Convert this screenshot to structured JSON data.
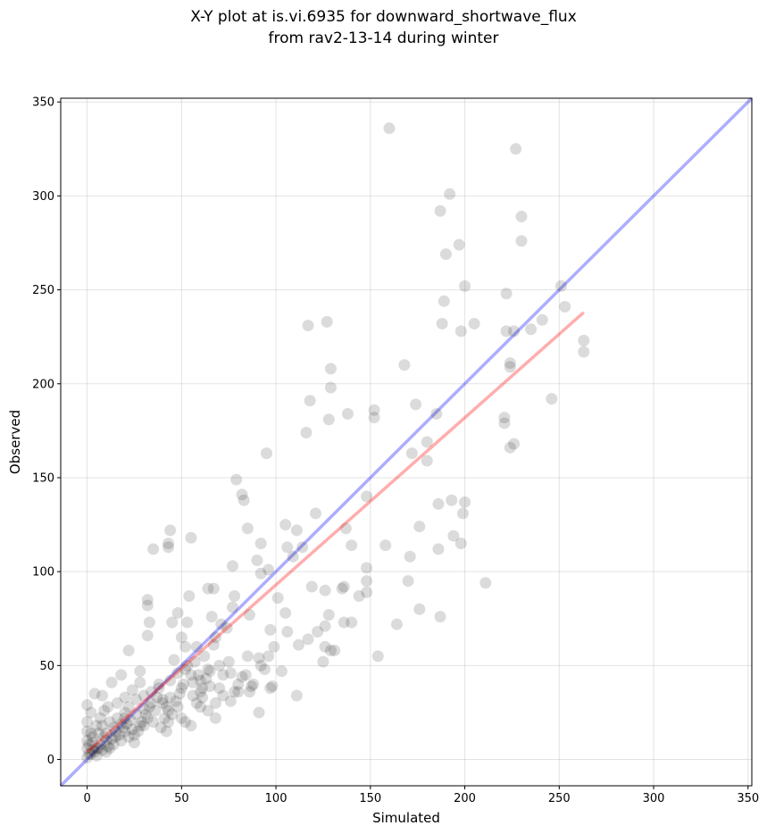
{
  "chart_data": {
    "type": "scatter",
    "title": "X-Y plot at is.vi.6935 for downward_shortwave_flux",
    "subtitle": "from rav2-13-14 during winter",
    "xlabel": "Simulated",
    "ylabel": "Observed",
    "xlim": [
      -14,
      352
    ],
    "ylim": [
      -14,
      352
    ],
    "xticks": [
      0,
      50,
      100,
      150,
      200,
      250,
      300,
      350
    ],
    "yticks": [
      0,
      50,
      100,
      150,
      200,
      250,
      300,
      350
    ],
    "grid": true,
    "colors": {
      "points": "#000000",
      "one_to_one": "#0000ff",
      "fit": "#ff0000"
    },
    "one_to_one_line": {
      "x": [
        -14,
        352
      ],
      "y": [
        -14,
        352
      ]
    },
    "fit_line": {
      "x": [
        0,
        263
      ],
      "y": [
        4,
        238
      ]
    },
    "points": [
      [
        160,
        336
      ],
      [
        227,
        325
      ],
      [
        192,
        301
      ],
      [
        187,
        292
      ],
      [
        230,
        289
      ],
      [
        230,
        276
      ],
      [
        197,
        274
      ],
      [
        190,
        269
      ],
      [
        200,
        252
      ],
      [
        251,
        252
      ],
      [
        222,
        248
      ],
      [
        189,
        244
      ],
      [
        253,
        241
      ],
      [
        205,
        232
      ],
      [
        188,
        232
      ],
      [
        127,
        233
      ],
      [
        117,
        231
      ],
      [
        222,
        228
      ],
      [
        198,
        228
      ],
      [
        226,
        228
      ],
      [
        235,
        229
      ],
      [
        241,
        234
      ],
      [
        263,
        223
      ],
      [
        263,
        217
      ],
      [
        224,
        211
      ],
      [
        224,
        209
      ],
      [
        168,
        210
      ],
      [
        129,
        208
      ],
      [
        129,
        198
      ],
      [
        118,
        191
      ],
      [
        152,
        186
      ],
      [
        138,
        184
      ],
      [
        174,
        189
      ],
      [
        185,
        184
      ],
      [
        152,
        182
      ],
      [
        128,
        181
      ],
      [
        221,
        182
      ],
      [
        221,
        179
      ],
      [
        224,
        166
      ],
      [
        226,
        168
      ],
      [
        246,
        192
      ],
      [
        116,
        174
      ],
      [
        180,
        169
      ],
      [
        172,
        163
      ],
      [
        180,
        159
      ],
      [
        95,
        163
      ],
      [
        79,
        149
      ],
      [
        82,
        141
      ],
      [
        83,
        138
      ],
      [
        148,
        140
      ],
      [
        193,
        138
      ],
      [
        186,
        136
      ],
      [
        200,
        137
      ],
      [
        199,
        131
      ],
      [
        121,
        131
      ],
      [
        105,
        125
      ],
      [
        111,
        122
      ],
      [
        137,
        123
      ],
      [
        85,
        123
      ],
      [
        44,
        122
      ],
      [
        176,
        124
      ],
      [
        194,
        119
      ],
      [
        198,
        115
      ],
      [
        186,
        112
      ],
      [
        158,
        114
      ],
      [
        140,
        114
      ],
      [
        114,
        113
      ],
      [
        106,
        113
      ],
      [
        92,
        115
      ],
      [
        109,
        108
      ],
      [
        171,
        108
      ],
      [
        55,
        118
      ],
      [
        43,
        115
      ],
      [
        43,
        113
      ],
      [
        35,
        112
      ],
      [
        90,
        106
      ],
      [
        96,
        101
      ],
      [
        92,
        99
      ],
      [
        77,
        103
      ],
      [
        148,
        102
      ],
      [
        211,
        94
      ],
      [
        170,
        95
      ],
      [
        148,
        95
      ],
      [
        135,
        91
      ],
      [
        144,
        87
      ],
      [
        148,
        89
      ],
      [
        119,
        92
      ],
      [
        126,
        90
      ],
      [
        101,
        86
      ],
      [
        136,
        92
      ],
      [
        54,
        87
      ],
      [
        64,
        91
      ],
      [
        67,
        91
      ],
      [
        78,
        87
      ],
      [
        32,
        85
      ],
      [
        32,
        82
      ],
      [
        105,
        78
      ],
      [
        176,
        80
      ],
      [
        187,
        76
      ],
      [
        164,
        72
      ],
      [
        140,
        73
      ],
      [
        136,
        73
      ],
      [
        128,
        77
      ],
      [
        86,
        77
      ],
      [
        77,
        81
      ],
      [
        66,
        76
      ],
      [
        48,
        78
      ],
      [
        45,
        73
      ],
      [
        33,
        73
      ],
      [
        53,
        73
      ],
      [
        71,
        72
      ],
      [
        74,
        70
      ],
      [
        97,
        69
      ],
      [
        106,
        68
      ],
      [
        122,
        68
      ],
      [
        126,
        71
      ],
      [
        112,
        61
      ],
      [
        117,
        64
      ],
      [
        50,
        65
      ],
      [
        68,
        65
      ],
      [
        52,
        60
      ],
      [
        67,
        61
      ],
      [
        32,
        66
      ],
      [
        99,
        60
      ],
      [
        126,
        60
      ],
      [
        129,
        58
      ],
      [
        131,
        58
      ],
      [
        154,
        55
      ],
      [
        125,
        52
      ],
      [
        91,
        54
      ],
      [
        85,
        55
      ],
      [
        22,
        58
      ],
      [
        94,
        48
      ],
      [
        103,
        47
      ],
      [
        111,
        34
      ],
      [
        98,
        39
      ],
      [
        97,
        38
      ],
      [
        91,
        25
      ],
      [
        68,
        22
      ],
      [
        76,
        46
      ],
      [
        78,
        36
      ],
      [
        86,
        36
      ],
      [
        87,
        39
      ],
      [
        60,
        36
      ],
      [
        61,
        33
      ],
      [
        44,
        33
      ],
      [
        43,
        20
      ],
      [
        42,
        15
      ],
      [
        30,
        18
      ],
      [
        20,
        25
      ],
      [
        20,
        22
      ],
      [
        10,
        10
      ],
      [
        5,
        6
      ],
      [
        2,
        3
      ],
      [
        0,
        1
      ],
      [
        15,
        12
      ],
      [
        25,
        13
      ],
      [
        35,
        20
      ],
      [
        38,
        40
      ],
      [
        46,
        53
      ],
      [
        56,
        41
      ],
      [
        64,
        48
      ],
      [
        72,
        45
      ],
      [
        75,
        52
      ],
      [
        58,
        30
      ],
      [
        48,
        28
      ],
      [
        28,
        47
      ],
      [
        18,
        45
      ],
      [
        13,
        41
      ],
      [
        8,
        34
      ],
      [
        4,
        35
      ],
      [
        2,
        25
      ],
      [
        0,
        29
      ],
      [
        0,
        20
      ],
      [
        0,
        15
      ],
      [
        0,
        10
      ],
      [
        0,
        6
      ],
      [
        3,
        9
      ],
      [
        6,
        14
      ],
      [
        8,
        18
      ],
      [
        12,
        20
      ],
      [
        16,
        22
      ],
      [
        22,
        28
      ],
      [
        26,
        32
      ],
      [
        30,
        34
      ],
      [
        34,
        36
      ],
      [
        38,
        38
      ],
      [
        40,
        32
      ],
      [
        42,
        28
      ],
      [
        45,
        24
      ],
      [
        50,
        22
      ],
      [
        52,
        20
      ],
      [
        55,
        18
      ],
      [
        50,
        38
      ],
      [
        55,
        45
      ],
      [
        60,
        42
      ],
      [
        65,
        39
      ],
      [
        70,
        38
      ],
      [
        80,
        40
      ],
      [
        82,
        44
      ],
      [
        70,
        50
      ],
      [
        62,
        55
      ],
      [
        58,
        60
      ],
      [
        12,
        6
      ],
      [
        14,
        8
      ],
      [
        18,
        10
      ],
      [
        22,
        12
      ],
      [
        24,
        16
      ],
      [
        28,
        18
      ],
      [
        32,
        22
      ],
      [
        36,
        26
      ],
      [
        40,
        30
      ],
      [
        4,
        4
      ],
      [
        6,
        6
      ],
      [
        8,
        5
      ],
      [
        10,
        4
      ],
      [
        3,
        12
      ],
      [
        5,
        18
      ],
      [
        7,
        22
      ],
      [
        9,
        26
      ],
      [
        11,
        28
      ],
      [
        1,
        8
      ],
      [
        2,
        14
      ],
      [
        16,
        30
      ],
      [
        20,
        33
      ],
      [
        24,
        37
      ],
      [
        28,
        41
      ],
      [
        10,
        14
      ],
      [
        14,
        17
      ],
      [
        18,
        19
      ],
      [
        20,
        15
      ],
      [
        26,
        24
      ],
      [
        30,
        27
      ],
      [
        34,
        30
      ],
      [
        44,
        42
      ],
      [
        48,
        46
      ],
      [
        52,
        48
      ],
      [
        56,
        34
      ],
      [
        60,
        28
      ],
      [
        64,
        26
      ],
      [
        68,
        30
      ],
      [
        72,
        34
      ],
      [
        76,
        31
      ],
      [
        80,
        36
      ],
      [
        84,
        45
      ],
      [
        88,
        40
      ],
      [
        92,
        50
      ],
      [
        96,
        55
      ],
      [
        1,
        3
      ],
      [
        3,
        5
      ],
      [
        5,
        2
      ],
      [
        7,
        8
      ],
      [
        9,
        12
      ],
      [
        11,
        7
      ],
      [
        13,
        11
      ],
      [
        15,
        15
      ],
      [
        17,
        13
      ],
      [
        19,
        17
      ],
      [
        21,
        19
      ],
      [
        23,
        21
      ],
      [
        25,
        9
      ],
      [
        27,
        15
      ],
      [
        29,
        20
      ],
      [
        31,
        24
      ],
      [
        33,
        28
      ],
      [
        37,
        33
      ],
      [
        39,
        17
      ],
      [
        41,
        22
      ],
      [
        43,
        26
      ],
      [
        47,
        31
      ],
      [
        49,
        35
      ],
      [
        51,
        40
      ],
      [
        53,
        50
      ],
      [
        57,
        52
      ],
      [
        59,
        45
      ],
      [
        61,
        38
      ],
      [
        63,
        43
      ],
      [
        65,
        47
      ]
    ]
  }
}
